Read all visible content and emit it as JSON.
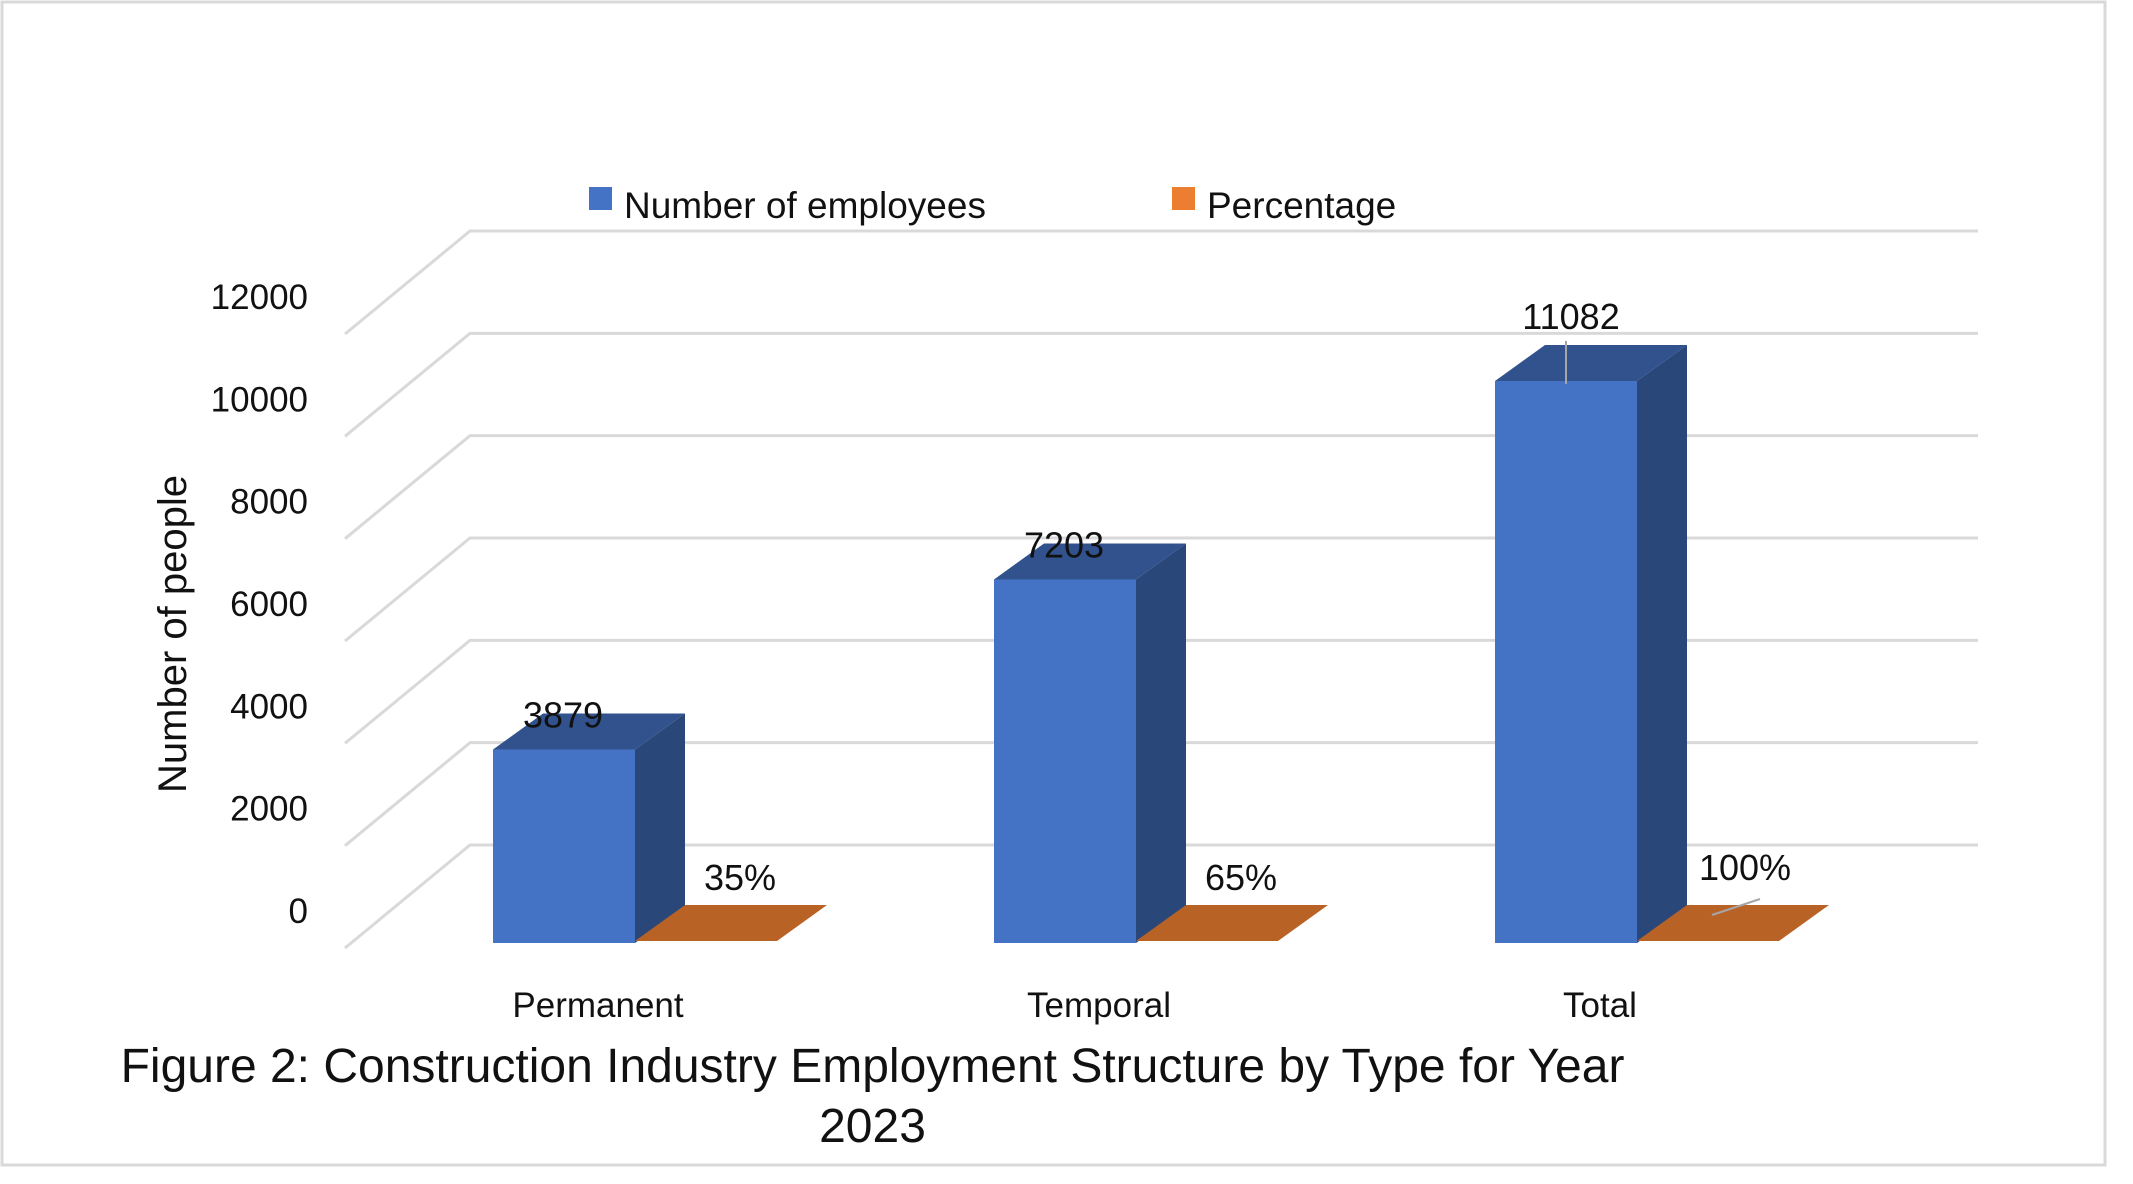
{
  "chart_data": {
    "type": "bar",
    "style": "3d-column",
    "categories": [
      "Permanent",
      "Temporal",
      "Total"
    ],
    "series": [
      {
        "name": "Number of employees",
        "values": [
          3879,
          7203,
          11082
        ],
        "labels": [
          "3879",
          "7203",
          "11082"
        ],
        "color": "#4472C4"
      },
      {
        "name": "Percentage",
        "values": [
          35,
          65,
          100
        ],
        "labels": [
          "35%",
          "65%",
          "100%"
        ],
        "color": "#ED7D31"
      }
    ],
    "xlabel": "",
    "ylabel": "Number of people",
    "ylim": [
      0,
      12000
    ],
    "yticks": [
      0,
      2000,
      4000,
      6000,
      8000,
      10000,
      12000
    ],
    "grid": true,
    "legend": "top",
    "caption_line1": "Figure 2: Construction Industry Employment Structure by Type for Year",
    "caption_line2": "2023"
  }
}
